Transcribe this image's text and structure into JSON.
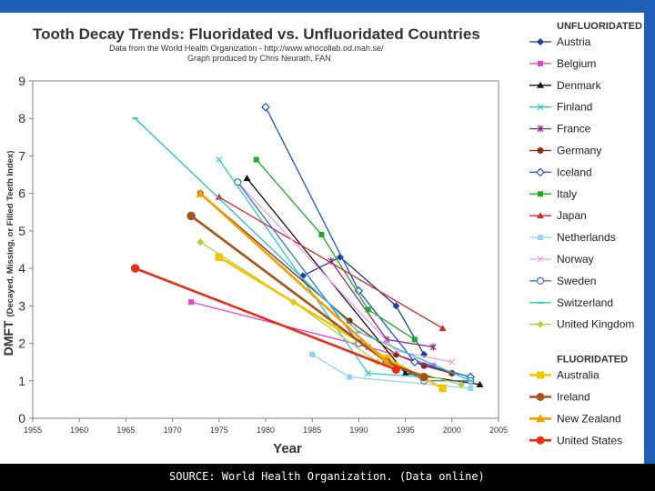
{
  "header": {
    "title": "Tooth Decay Trends:  Fluoridated vs. Unfluoridated Countries",
    "source_line": "Data from the World Health Organization - http://www.whocollab.od.mah.se/",
    "credit_line": "Graph produced by Chris Neurath, FAN"
  },
  "footer": {
    "text": "SOURCE: World Health Organization. (Data online)"
  },
  "colors": {
    "accent": "#1f5fb8",
    "footer_bg": "#000000"
  },
  "chart_data": {
    "type": "line",
    "xlabel": "Year",
    "ylabel": "DMFT (Decayed, Missing, or Filled Teeth Index)",
    "xlim": [
      1955,
      2005
    ],
    "ylim": [
      0,
      9
    ],
    "xticks": [
      1955,
      1960,
      1965,
      1970,
      1975,
      1980,
      1985,
      1990,
      1995,
      2000,
      2005
    ],
    "yticks": [
      0,
      1,
      2,
      3,
      4,
      5,
      6,
      7,
      8,
      9
    ],
    "grid": false,
    "legend_position": "right",
    "legend_groups": [
      {
        "heading": "UNFLUORIDATED",
        "series_indices": [
          0,
          1,
          2,
          3,
          4,
          5,
          6,
          7,
          8,
          9,
          10,
          11,
          12,
          13
        ]
      },
      {
        "heading": "FLUORIDATED",
        "series_indices": [
          14,
          15,
          16,
          17
        ]
      }
    ],
    "series": [
      {
        "name": "Austria",
        "color": "#1a3f9a",
        "marker": "diamond",
        "group": "unfluoridated",
        "x": [
          1984,
          1988,
          1994,
          1997
        ],
        "y": [
          3.8,
          4.3,
          3.0,
          1.7
        ]
      },
      {
        "name": "Belgium",
        "color": "#e23fd2",
        "marker": "square",
        "group": "unfluoridated",
        "x": [
          1972,
          1991,
          1998
        ],
        "y": [
          3.1,
          1.9,
          1.4
        ]
      },
      {
        "name": "Denmark",
        "color": "#111111",
        "marker": "triangle",
        "group": "unfluoridated",
        "x": [
          1978,
          1995,
          2003
        ],
        "y": [
          6.4,
          1.2,
          0.9
        ]
      },
      {
        "name": "Finland",
        "color": "#2fc7d8",
        "marker": "x",
        "group": "unfluoridated",
        "x": [
          1975,
          1991,
          1997
        ],
        "y": [
          6.9,
          1.2,
          1.1
        ]
      },
      {
        "name": "France",
        "color": "#8a2a8a",
        "marker": "star",
        "group": "unfluoridated",
        "x": [
          1987,
          1993,
          1998
        ],
        "y": [
          4.2,
          2.1,
          1.9
        ]
      },
      {
        "name": "Germany",
        "color": "#8b2a0c",
        "marker": "circle",
        "group": "unfluoridated",
        "x": [
          1973,
          1989,
          1994,
          1997,
          2000
        ],
        "y": [
          6.0,
          2.6,
          1.7,
          1.4,
          1.2
        ]
      },
      {
        "name": "Iceland",
        "color": "#1c56c8",
        "marker": "diamond-open",
        "group": "unfluoridated",
        "x": [
          1980,
          1990,
          1996,
          2002
        ],
        "y": [
          8.3,
          3.4,
          1.5,
          1.1
        ]
      },
      {
        "name": "Italy",
        "color": "#22a62a",
        "marker": "square",
        "group": "unfluoridated",
        "x": [
          1979,
          1986,
          1991,
          1996
        ],
        "y": [
          6.9,
          4.9,
          2.9,
          2.1
        ]
      },
      {
        "name": "Japan",
        "color": "#d12c20",
        "marker": "triangle",
        "group": "unfluoridated",
        "x": [
          1975,
          1999
        ],
        "y": [
          5.9,
          2.4
        ]
      },
      {
        "name": "Netherlands",
        "color": "#8fd3f0",
        "marker": "square",
        "group": "unfluoridated",
        "x": [
          1985,
          1989,
          2002
        ],
        "y": [
          1.7,
          1.1,
          0.8
        ]
      },
      {
        "name": "Norway",
        "color": "#ef9fe6",
        "marker": "x",
        "group": "unfluoridated",
        "x": [
          1977,
          1994,
          2000
        ],
        "y": [
          6.3,
          1.8,
          1.5
        ]
      },
      {
        "name": "Sweden",
        "color": "#3a73c8",
        "marker": "circle-open",
        "group": "unfluoridated",
        "x": [
          1977,
          1990,
          1997,
          2002
        ],
        "y": [
          6.3,
          2.0,
          1.0,
          1.0
        ]
      },
      {
        "name": "Switzerland",
        "color": "#2cbfc4",
        "marker": "line",
        "group": "unfluoridated",
        "x": [
          1966,
          1990,
          2002
        ],
        "y": [
          8.0,
          2.3,
          1.0
        ]
      },
      {
        "name": "United Kingdom",
        "color": "#b7cf3a",
        "marker": "diamond",
        "group": "unfluoridated",
        "x": [
          1973,
          1983,
          1992,
          2001
        ],
        "y": [
          4.7,
          3.1,
          1.5,
          0.9
        ]
      },
      {
        "name": "Australia",
        "color": "#f4c400",
        "marker": "square",
        "group": "fluoridated",
        "x": [
          1975,
          1993,
          1999
        ],
        "y": [
          4.3,
          1.6,
          0.8
        ]
      },
      {
        "name": "Ireland",
        "color": "#a4521a",
        "marker": "circle",
        "group": "fluoridated",
        "x": [
          1972,
          1993,
          1997
        ],
        "y": [
          5.4,
          1.5,
          1.1
        ]
      },
      {
        "name": "New Zealand",
        "color": "#f0a000",
        "marker": "triangle",
        "group": "fluoridated",
        "x": [
          1973,
          1993
        ],
        "y": [
          6.0,
          1.5
        ]
      },
      {
        "name": "United States",
        "color": "#e43018",
        "marker": "circle",
        "group": "fluoridated",
        "x": [
          1966,
          1994
        ],
        "y": [
          4.0,
          1.3
        ]
      }
    ]
  }
}
